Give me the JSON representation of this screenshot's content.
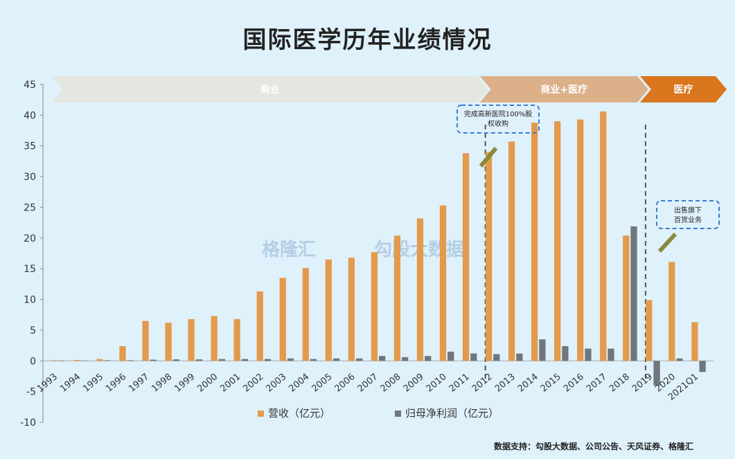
{
  "title": "国际医学历年业绩情况",
  "source": "数据支持：勾股大数据、公司公告、天风证券、格隆汇",
  "watermark": {
    "left": "格隆汇",
    "right": "勾股大数据"
  },
  "phases": [
    {
      "label": "商业",
      "from": "1993",
      "to": "2011",
      "color": "#e3e7df"
    },
    {
      "label": "商业+医疗",
      "from": "2012",
      "to": "2018",
      "color": "#dcb088"
    },
    {
      "label": "医疗",
      "from": "2019",
      "to": "2021Q1",
      "color": "#d9761e"
    }
  ],
  "annotations": [
    {
      "text_lines": [
        "完成高新医院100%股",
        "权收购"
      ],
      "at": "2012"
    },
    {
      "text_lines": [
        "出售旗下",
        "百货业务"
      ],
      "at": "2019"
    }
  ],
  "chart_data": {
    "type": "bar",
    "categories": [
      "1993",
      "1994",
      "1995",
      "1996",
      "1997",
      "1998",
      "1999",
      "2000",
      "2001",
      "2002",
      "2003",
      "2004",
      "2005",
      "2006",
      "2007",
      "2008",
      "2009",
      "2010",
      "2011",
      "2012",
      "2013",
      "2014",
      "2015",
      "2016",
      "2017",
      "2018",
      "2019",
      "2020",
      "2021Q1"
    ],
    "series": [
      {
        "name": "营收（亿元）",
        "color": "#e39a4c",
        "values": [
          0.1,
          0.15,
          0.3,
          2.4,
          6.5,
          6.2,
          6.8,
          7.3,
          6.8,
          11.3,
          13.5,
          15.1,
          16.5,
          16.8,
          17.7,
          20.4,
          23.2,
          25.3,
          33.8,
          34.0,
          35.7,
          38.8,
          39.0,
          39.3,
          40.6,
          20.4,
          9.9,
          16.1,
          6.3
        ]
      },
      {
        "name": "归母净利润（亿元）",
        "color": "#6f767c",
        "values": [
          0.05,
          0.05,
          0.1,
          0.1,
          0.2,
          0.25,
          0.25,
          0.3,
          0.3,
          0.3,
          0.4,
          0.3,
          0.4,
          0.4,
          0.8,
          0.6,
          0.8,
          1.5,
          1.2,
          1.1,
          1.2,
          3.5,
          2.4,
          2.0,
          2.0,
          21.9,
          -4.0,
          0.4,
          -1.8
        ]
      }
    ],
    "ylim": [
      -10,
      45
    ],
    "yticks": [
      -10,
      -5,
      0,
      5,
      10,
      15,
      20,
      25,
      30,
      35,
      40,
      45
    ],
    "legend_position": "bottom"
  }
}
